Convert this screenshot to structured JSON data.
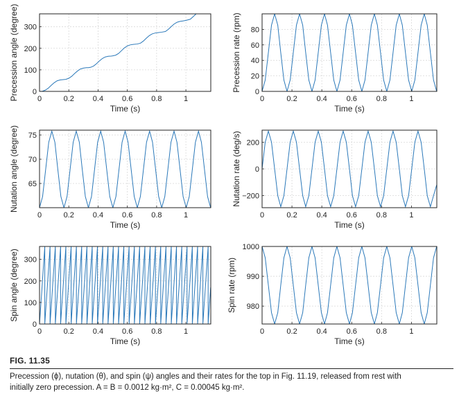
{
  "figure": {
    "label": "FIG. 11.35",
    "caption_lines": [
      "Precession (ϕ), nutation (θ), and spin (ψ) angles and their rates for the top in Fig. 11.19, released from rest with",
      "initially zero precession. A = B = 0.0012  kg·m²,   C = 0.00045  kg·m²."
    ]
  },
  "colors": {
    "line": "#2a78b9",
    "grid": "#d8d8d8",
    "axis": "#222222"
  },
  "chart_data": [
    {
      "type": "line",
      "xlabel": "Time (s)",
      "ylabel": "Precession angle (degree)",
      "xlim": [
        0,
        1.17
      ],
      "ylim": [
        0,
        360
      ],
      "xticks": [
        0,
        0.2,
        0.4,
        0.6,
        0.8,
        1
      ],
      "xtick_labels": [
        "0",
        "0.2",
        "0.4",
        "0.6",
        "0.8",
        "1"
      ],
      "yticks": [
        0,
        100,
        200,
        300
      ],
      "ytick_labels": [
        "0",
        "100",
        "200",
        "300"
      ],
      "grid": true,
      "series": [
        {
          "x": [
            0,
            0.02,
            0.04,
            0.06,
            0.08,
            0.1,
            0.12,
            0.14,
            0.167,
            0.18,
            0.2,
            0.22,
            0.24,
            0.26,
            0.28,
            0.3,
            0.32,
            0.334,
            0.35,
            0.37,
            0.39,
            0.41,
            0.43,
            0.45,
            0.47,
            0.49,
            0.501,
            0.52,
            0.54,
            0.56,
            0.58,
            0.6,
            0.62,
            0.64,
            0.668,
            0.69,
            0.71,
            0.73,
            0.75,
            0.77,
            0.79,
            0.81,
            0.835,
            0.86,
            0.88,
            0.9,
            0.92,
            0.94,
            0.96,
            0.98,
            1.002,
            1.03,
            1.05,
            1.07,
            1.09,
            1.11,
            1.13,
            1.15,
            1.169
          ],
          "y": [
            0,
            1,
            6,
            15,
            28,
            40,
            49,
            53,
            55,
            56,
            61,
            70,
            83,
            95,
            104,
            108,
            110,
            110,
            112,
            118,
            129,
            142,
            153,
            160,
            163,
            164,
            165,
            168,
            176,
            189,
            202,
            211,
            216,
            218,
            220,
            224,
            234,
            247,
            259,
            267,
            271,
            273,
            275,
            278,
            288,
            301,
            313,
            321,
            325,
            327,
            330,
            335,
            347,
            360,
            360,
            360,
            360,
            360,
            360
          ]
        }
      ]
    },
    {
      "type": "line",
      "xlabel": "Time (s)",
      "ylabel": "Precession rate (rpm)",
      "xlim": [
        0,
        1.17
      ],
      "ylim": [
        0,
        100
      ],
      "xticks": [
        0,
        0.2,
        0.4,
        0.6,
        0.8,
        1
      ],
      "xtick_labels": [
        "0",
        "0.2",
        "0.4",
        "0.6",
        "0.8",
        "1"
      ],
      "yticks": [
        0,
        20,
        40,
        60,
        80
      ],
      "ytick_labels": [
        "0",
        "20",
        "40",
        "60",
        "80"
      ],
      "grid": true,
      "series": [
        {
          "x": [
            0,
            0.021,
            0.042,
            0.063,
            0.084,
            0.105,
            0.125,
            0.146,
            0.167,
            0.188,
            0.209,
            0.23,
            0.251,
            0.272,
            0.292,
            0.313,
            0.334,
            0.355,
            0.376,
            0.397,
            0.418,
            0.438,
            0.459,
            0.48,
            0.501,
            0.522,
            0.543,
            0.564,
            0.585,
            0.605,
            0.626,
            0.647,
            0.668,
            0.689,
            0.71,
            0.731,
            0.752,
            0.772,
            0.793,
            0.814,
            0.835,
            0.856,
            0.877,
            0.898,
            0.919,
            0.939,
            0.96,
            0.981,
            1.002,
            1.023,
            1.044,
            1.065,
            1.086,
            1.106,
            1.127,
            1.148,
            1.169
          ],
          "y": [
            0,
            14.6,
            50,
            85.4,
            100,
            85.4,
            50,
            14.6,
            0,
            14.6,
            50,
            85.4,
            100,
            85.4,
            50,
            14.6,
            0,
            14.6,
            50,
            85.4,
            100,
            85.4,
            50,
            14.6,
            0,
            14.6,
            50,
            85.4,
            100,
            85.4,
            50,
            14.6,
            0,
            14.6,
            50,
            85.4,
            100,
            85.4,
            50,
            14.6,
            0,
            14.6,
            50,
            85.4,
            100,
            85.4,
            50,
            14.6,
            0,
            14.6,
            50,
            85.4,
            100,
            85.4,
            50,
            14.6,
            0
          ]
        }
      ]
    },
    {
      "type": "line",
      "xlabel": "Time (s)",
      "ylabel": "Nutation angle (degree)",
      "xlim": [
        0,
        1.17
      ],
      "ylim": [
        60,
        76
      ],
      "xticks": [
        0,
        0.2,
        0.4,
        0.6,
        0.8,
        1
      ],
      "xtick_labels": [
        "0",
        "0.2",
        "0.4",
        "0.6",
        "0.8",
        "1"
      ],
      "yticks": [
        65,
        70,
        75
      ],
      "ytick_labels": [
        "65",
        "70",
        "75"
      ],
      "grid": true,
      "series": [
        {
          "x": [
            0,
            0.021,
            0.042,
            0.063,
            0.084,
            0.105,
            0.125,
            0.146,
            0.167,
            0.188,
            0.209,
            0.23,
            0.251,
            0.272,
            0.292,
            0.313,
            0.334,
            0.355,
            0.376,
            0.397,
            0.418,
            0.438,
            0.459,
            0.48,
            0.501,
            0.522,
            0.543,
            0.564,
            0.585,
            0.605,
            0.626,
            0.647,
            0.668,
            0.689,
            0.71,
            0.731,
            0.752,
            0.772,
            0.793,
            0.814,
            0.835,
            0.856,
            0.877,
            0.898,
            0.919,
            0.939,
            0.96,
            0.981,
            1.002,
            1.023,
            1.044,
            1.065,
            1.086,
            1.106,
            1.127,
            1.148,
            1.169
          ],
          "y": [
            60,
            62.3,
            67.9,
            73.5,
            75.8,
            73.5,
            67.9,
            62.3,
            60,
            62.3,
            67.9,
            73.5,
            75.8,
            73.5,
            67.9,
            62.3,
            60,
            62.3,
            67.9,
            73.5,
            75.8,
            73.5,
            67.9,
            62.3,
            60,
            62.3,
            67.9,
            73.5,
            75.8,
            73.5,
            67.9,
            62.3,
            60,
            62.3,
            67.9,
            73.5,
            75.8,
            73.5,
            67.9,
            62.3,
            60,
            62.3,
            67.9,
            73.5,
            75.8,
            73.5,
            67.9,
            62.3,
            60,
            62.3,
            67.9,
            73.5,
            75.8,
            73.5,
            67.9,
            62.3,
            60
          ]
        }
      ]
    },
    {
      "type": "line",
      "xlabel": "Time (s)",
      "ylabel": "Nutation rate (deg/s)",
      "xlim": [
        0,
        1.17
      ],
      "ylim": [
        -290,
        290
      ],
      "xticks": [
        0,
        0.2,
        0.4,
        0.6,
        0.8,
        1
      ],
      "xtick_labels": [
        "0",
        "0.2",
        "0.4",
        "0.6",
        "0.8",
        "1"
      ],
      "yticks": [
        -200,
        0,
        200
      ],
      "ytick_labels": [
        "−200",
        "0",
        "200"
      ],
      "grid": true,
      "series": [
        {
          "x": [
            0,
            0.021,
            0.042,
            0.063,
            0.084,
            0.105,
            0.125,
            0.146,
            0.167,
            0.188,
            0.209,
            0.23,
            0.251,
            0.272,
            0.292,
            0.313,
            0.334,
            0.355,
            0.376,
            0.397,
            0.418,
            0.438,
            0.459,
            0.48,
            0.501,
            0.522,
            0.543,
            0.564,
            0.585,
            0.605,
            0.626,
            0.647,
            0.668,
            0.689,
            0.71,
            0.731,
            0.752,
            0.772,
            0.793,
            0.814,
            0.835,
            0.856,
            0.877,
            0.898,
            0.919,
            0.939,
            0.96,
            0.981,
            1.002,
            1.023,
            1.044,
            1.065,
            1.086,
            1.106,
            1.127,
            1.148,
            1.169
          ],
          "y": [
            0,
            200,
            283,
            200,
            0,
            -200,
            -283,
            -200,
            0,
            200,
            283,
            200,
            0,
            -200,
            -283,
            -200,
            0,
            200,
            283,
            200,
            0,
            -200,
            -283,
            -200,
            0,
            200,
            283,
            200,
            0,
            -200,
            -283,
            -200,
            0,
            200,
            283,
            200,
            0,
            -200,
            -283,
            -200,
            0,
            200,
            283,
            200,
            0,
            -200,
            -283,
            -200,
            0,
            200,
            283,
            200,
            0,
            -200,
            -283,
            -200,
            -120
          ]
        }
      ]
    },
    {
      "type": "line",
      "xlabel": "Time (s)",
      "ylabel": "Spin angle (degree)",
      "xlim": [
        0,
        1.17
      ],
      "ylim": [
        0,
        360
      ],
      "xticks": [
        0,
        0.2,
        0.4,
        0.6,
        0.8,
        1
      ],
      "xtick_labels": [
        "0",
        "0.2",
        "0.4",
        "0.6",
        "0.8",
        "1"
      ],
      "yticks": [
        0,
        100,
        200,
        300
      ],
      "ytick_labels": [
        "0",
        "100",
        "200",
        "300"
      ],
      "grid": true,
      "series": [
        {
          "x": [
            0,
            0.036,
            0.036,
            0.072,
            0.072,
            0.108,
            0.108,
            0.144,
            0.144,
            0.18,
            0.18,
            0.216,
            0.216,
            0.252,
            0.252,
            0.288,
            0.288,
            0.324,
            0.324,
            0.36,
            0.36,
            0.396,
            0.396,
            0.432,
            0.432,
            0.468,
            0.468,
            0.504,
            0.504,
            0.54,
            0.54,
            0.576,
            0.576,
            0.612,
            0.612,
            0.648,
            0.648,
            0.684,
            0.684,
            0.72,
            0.72,
            0.756,
            0.756,
            0.792,
            0.792,
            0.828,
            0.828,
            0.864,
            0.864,
            0.9,
            0.9,
            0.936,
            0.936,
            0.972,
            0.972,
            1.008,
            1.008,
            1.044,
            1.044,
            1.08,
            1.08,
            1.116,
            1.116,
            1.152,
            1.152,
            1.169
          ],
          "y": [
            0,
            360,
            0,
            360,
            0,
            360,
            0,
            360,
            0,
            360,
            0,
            360,
            0,
            360,
            0,
            360,
            0,
            360,
            0,
            360,
            0,
            360,
            0,
            360,
            0,
            360,
            0,
            360,
            0,
            360,
            0,
            360,
            0,
            360,
            0,
            360,
            0,
            360,
            0,
            360,
            0,
            360,
            0,
            360,
            0,
            360,
            0,
            360,
            0,
            360,
            0,
            360,
            0,
            360,
            0,
            360,
            0,
            360,
            0,
            360,
            0,
            360,
            0,
            360,
            0,
            170
          ]
        }
      ]
    },
    {
      "type": "line",
      "xlabel": "Time (s)",
      "ylabel": "Spin rate (rpm)",
      "xlim": [
        0,
        1.17
      ],
      "ylim": [
        974,
        1000
      ],
      "xticks": [
        0,
        0.2,
        0.4,
        0.6,
        0.8,
        1
      ],
      "xtick_labels": [
        "0",
        "0.2",
        "0.4",
        "0.6",
        "0.8",
        "1"
      ],
      "yticks": [
        980,
        990,
        1000
      ],
      "ytick_labels": [
        "980",
        "990",
        "1000"
      ],
      "grid": true,
      "series": [
        {
          "x": [
            0,
            0.021,
            0.042,
            0.063,
            0.084,
            0.105,
            0.125,
            0.146,
            0.167,
            0.188,
            0.209,
            0.23,
            0.251,
            0.272,
            0.292,
            0.313,
            0.334,
            0.355,
            0.376,
            0.397,
            0.418,
            0.438,
            0.459,
            0.48,
            0.501,
            0.522,
            0.543,
            0.564,
            0.585,
            0.605,
            0.626,
            0.647,
            0.668,
            0.689,
            0.71,
            0.731,
            0.752,
            0.772,
            0.793,
            0.814,
            0.835,
            0.856,
            0.877,
            0.898,
            0.919,
            0.939,
            0.96,
            0.981,
            1.002,
            1.023,
            1.044,
            1.065,
            1.086,
            1.106,
            1.127,
            1.148,
            1.169
          ],
          "y": [
            1000,
            996.2,
            987,
            977.8,
            974,
            977.8,
            987,
            996.2,
            1000,
            996.2,
            987,
            977.8,
            974,
            977.8,
            987,
            996.2,
            1000,
            996.2,
            987,
            977.8,
            974,
            977.8,
            987,
            996.2,
            1000,
            996.2,
            987,
            977.8,
            974,
            977.8,
            987,
            996.2,
            1000,
            996.2,
            987,
            977.8,
            974,
            977.8,
            987,
            996.2,
            1000,
            996.2,
            987,
            977.8,
            974,
            977.8,
            987,
            996.2,
            1000,
            996.2,
            987,
            977.8,
            974,
            977.8,
            987,
            996.2,
            1000
          ]
        }
      ]
    }
  ]
}
